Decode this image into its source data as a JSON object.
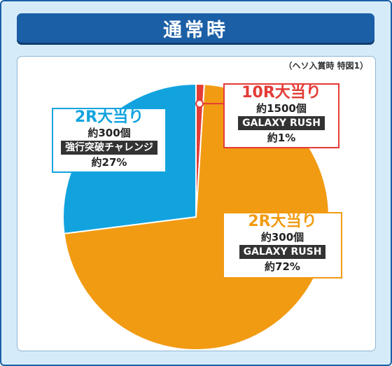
{
  "header": {
    "title": "通常時"
  },
  "note": "（ヘソ入賞時 特図1）",
  "colors": {
    "frame": "#1b5fa6",
    "background": "#d6ebf9",
    "red": "#e33b35",
    "blue": "#12a3df",
    "orange": "#f19b13"
  },
  "chart_data": {
    "type": "pie",
    "title": "通常時",
    "subtitle": "（ヘソ入賞時 特図1）",
    "slices": [
      {
        "name": "10R大当り",
        "sub": "約1500個",
        "tag": "GALAXY RUSH",
        "label": "約1%",
        "value": 1,
        "color": "#e33b35"
      },
      {
        "name": "2R大当り",
        "sub": "約300個",
        "tag": "GALAXY RUSH",
        "label": "約72%",
        "value": 72,
        "color": "#f19b13"
      },
      {
        "name": "2R大当り",
        "sub": "約300個",
        "tag": "強行突破チャレンジ",
        "label": "約27%",
        "value": 27,
        "color": "#12a3df"
      }
    ]
  }
}
